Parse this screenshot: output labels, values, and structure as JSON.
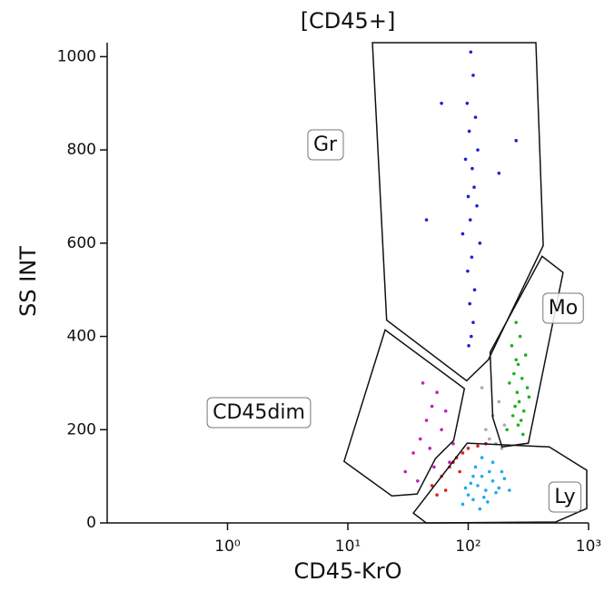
{
  "chart_data": {
    "type": "scatter",
    "title": "[CD45+]",
    "x_label": "CD45-KrO",
    "y_label": "SS INT",
    "x_scale": "log",
    "xlim": [
      0.1,
      1000
    ],
    "ylim": [
      0,
      1030
    ],
    "xticks": [
      {
        "value": 1,
        "label": "10⁰"
      },
      {
        "value": 10,
        "label": "10¹"
      },
      {
        "value": 100,
        "label": "10²"
      },
      {
        "value": 1000,
        "label": "10³"
      }
    ],
    "yticks": [
      0,
      200,
      400,
      600,
      800,
      1000
    ],
    "grid": false,
    "gates": [
      {
        "name": "Gr",
        "x": [
          16,
          21,
          97,
          147,
          420,
          365
        ],
        "y": [
          1030,
          435,
          305,
          350,
          595,
          1030
        ]
      },
      {
        "name": "Mo",
        "x": [
          152,
          411,
          614,
          316,
          191,
          160
        ],
        "y": [
          366,
          572,
          537,
          171,
          163,
          226
        ]
      },
      {
        "name": "CD45dim",
        "x": [
          9.3,
          20.4,
          93,
          75.7,
          53.4,
          37.6,
          23.2
        ],
        "y": [
          132,
          414,
          288,
          177,
          138,
          62,
          58
        ]
      },
      {
        "name": "Ly",
        "x": [
          35,
          98,
          472,
          966,
          966,
          532,
          44.8
        ],
        "y": [
          21,
          171,
          163,
          113,
          31,
          2,
          0
        ]
      }
    ],
    "series": [
      {
        "color": "#aaaaaa",
        "x": [
          140,
          160,
          180,
          150,
          200,
          170,
          130,
          190
        ],
        "y": [
          200,
          230,
          260,
          180,
          210,
          170,
          290,
          160
        ]
      },
      {
        "color": "#c020c0",
        "x": [
          30,
          35,
          40,
          45,
          50,
          55,
          60,
          70,
          38,
          48,
          65,
          42,
          52,
          75
        ],
        "y": [
          110,
          150,
          180,
          220,
          250,
          280,
          200,
          130,
          90,
          160,
          240,
          300,
          120,
          170
        ]
      },
      {
        "color": "#e02020",
        "x": [
          50,
          60,
          70,
          80,
          90,
          100,
          120,
          140,
          65,
          85,
          55,
          75
        ],
        "y": [
          80,
          100,
          120,
          140,
          150,
          160,
          165,
          170,
          70,
          110,
          60,
          130
        ]
      },
      {
        "color": "#1eaaf0",
        "x": [
          100,
          120,
          140,
          160,
          130,
          110,
          90,
          150,
          180,
          200,
          115,
          125,
          135,
          170,
          105,
          145,
          220,
          95,
          160,
          190,
          130,
          110
        ],
        "y": [
          60,
          80,
          70,
          90,
          100,
          50,
          40,
          110,
          75,
          95,
          120,
          30,
          55,
          65,
          85,
          45,
          70,
          75,
          130,
          110,
          140,
          100
        ]
      },
      {
        "color": "#20b020",
        "x": [
          250,
          270,
          230,
          300,
          260,
          240,
          280,
          220,
          310,
          255,
          265,
          245,
          290,
          235,
          275,
          260,
          210,
          320,
          250,
          285
        ],
        "y": [
          430,
          400,
          380,
          360,
          340,
          320,
          310,
          300,
          290,
          280,
          260,
          250,
          240,
          230,
          220,
          210,
          200,
          270,
          350,
          190
        ]
      },
      {
        "color": "#2020d0",
        "x": [
          105,
          110,
          98,
          115,
          102,
          120,
          95,
          108,
          112,
          100,
          118,
          104,
          90,
          125,
          107,
          99,
          113,
          103,
          60,
          180,
          45,
          250,
          110,
          106,
          101
        ],
        "y": [
          1010,
          960,
          900,
          870,
          840,
          800,
          780,
          760,
          720,
          700,
          680,
          650,
          620,
          600,
          570,
          540,
          500,
          470,
          900,
          750,
          650,
          820,
          430,
          400,
          380
        ]
      }
    ]
  }
}
